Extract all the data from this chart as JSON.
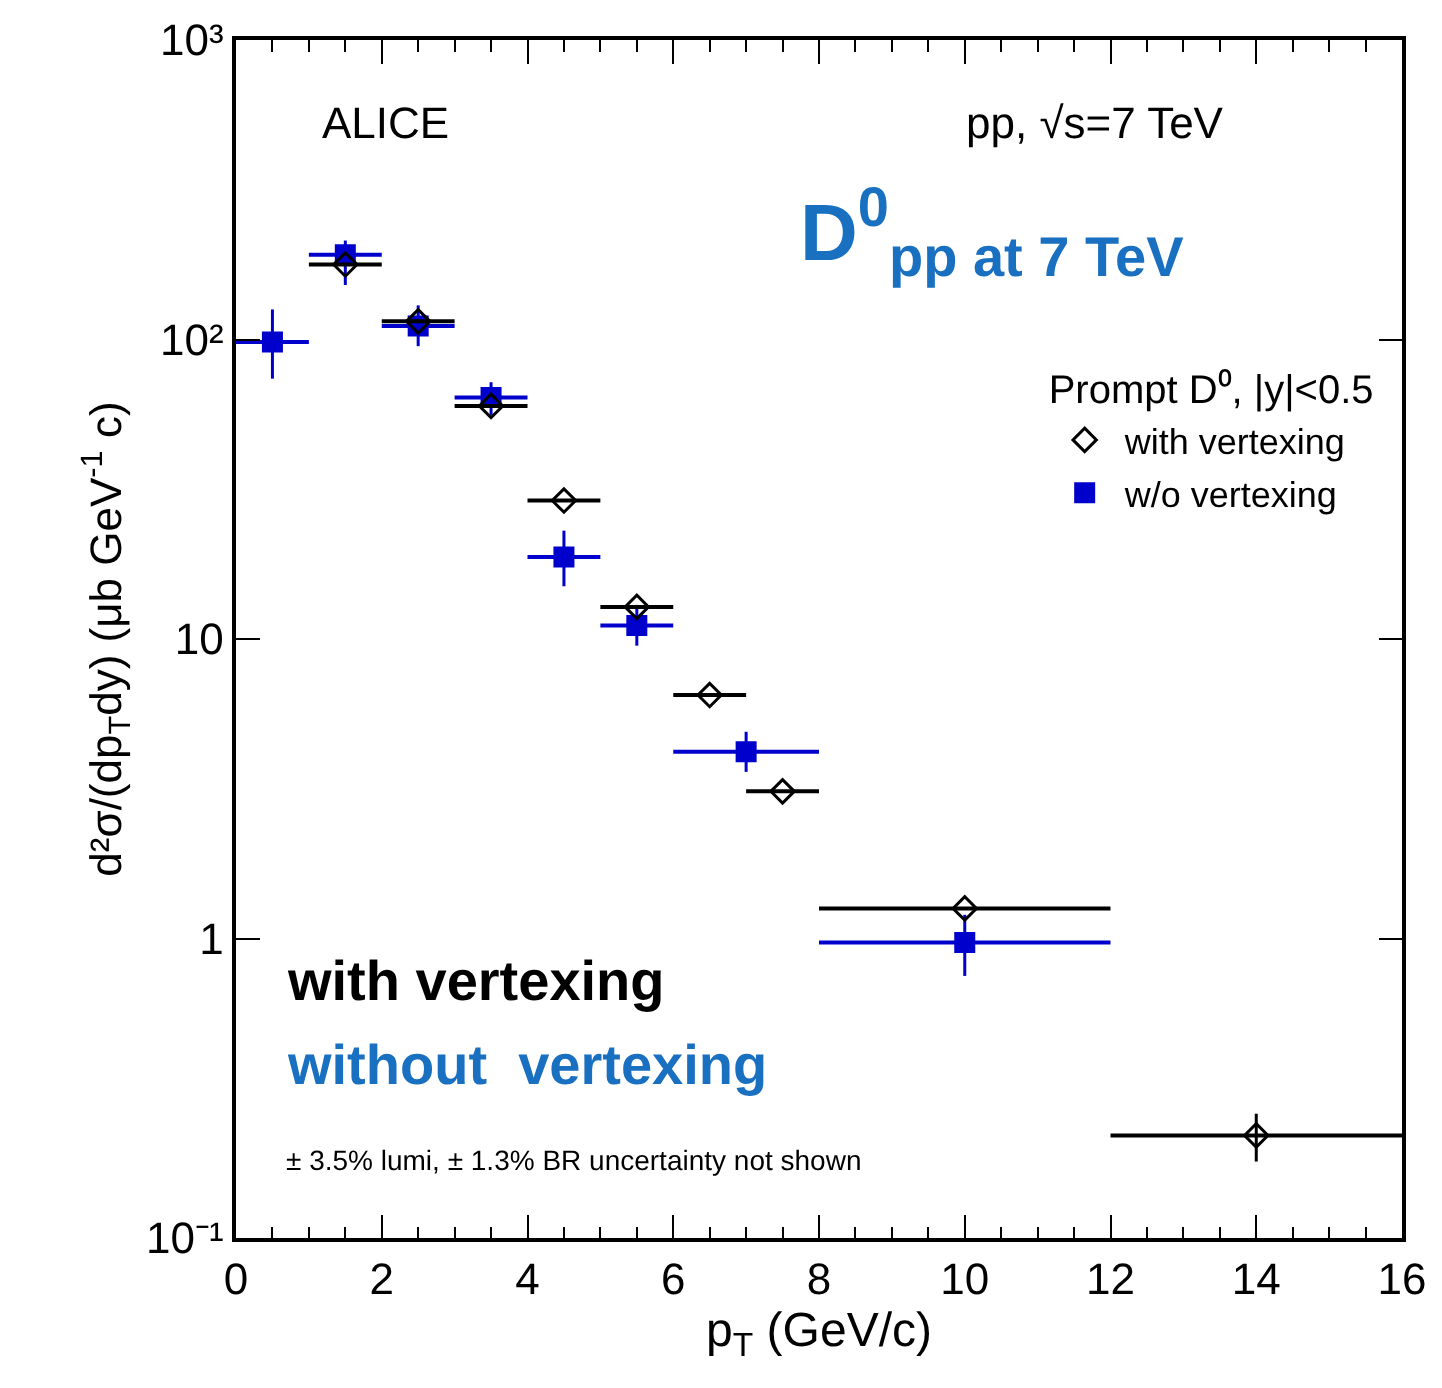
{
  "chart_data": {
    "type": "scatter",
    "xlabel": "p$_{T}$ (GeV/c)",
    "ylabel": "d²σ/(dp$_{T}$dy) (μb GeV$^{-1}$ c)",
    "legend_title": "Prompt D⁰, |y|<0.5",
    "legend": "top right",
    "log": "y",
    "grid": false,
    "xlim": [
      0,
      16
    ],
    "xticks": [
      0,
      2,
      4,
      6,
      8,
      10,
      12,
      14,
      16
    ],
    "ylim": [
      0.1,
      1000
    ],
    "yticks": [
      {
        "value": 0.1,
        "label": "10⁻¹"
      },
      1,
      10,
      {
        "value": 100,
        "label": "10²"
      },
      {
        "value": 1000,
        "label": "10³"
      }
    ],
    "series": [
      {
        "name": "with vertexing",
        "color": "#000000",
        "marker": "diamond",
        "x": [
          1.5,
          2.5,
          3.5,
          4.5,
          5.5,
          6.5,
          7.5,
          10,
          14
        ],
        "values": [
          178,
          115,
          60,
          29,
          12.8,
          6.5,
          3.1,
          1.26,
          0.22
        ],
        "xerrors": [
          0.5,
          0.5,
          0.5,
          0.5,
          0.5,
          0.5,
          0.5,
          2,
          2
        ],
        "errors": [
          null,
          null,
          null,
          null,
          null,
          null,
          null,
          null,
          [
            0.18,
            0.26
          ]
        ]
      },
      {
        "name": "w/o vertexing",
        "color": "#0000cc",
        "marker": "square",
        "x": [
          0.5,
          1.5,
          2.5,
          3.5,
          4.5,
          5.5,
          7,
          10
        ],
        "values": [
          98,
          192,
          111,
          64,
          18.8,
          11.1,
          4.2,
          0.97
        ],
        "xerrors": [
          0.5,
          0.5,
          0.5,
          0.5,
          0.5,
          0.5,
          1,
          2
        ],
        "errors": [
          [
            74,
            126
          ],
          [
            152,
            214
          ],
          [
            95,
            130
          ],
          [
            56,
            72
          ],
          [
            15,
            23
          ],
          [
            9.5,
            13
          ],
          [
            3.6,
            4.9
          ],
          [
            0.75,
            1.2
          ]
        ]
      }
    ],
    "annotations": [
      "ALICE",
      "pp, √s=7 TeV",
      "D$^{0}$$_{pp at 7 TeV}$",
      "with vertexing",
      "without  vertexing",
      "± 3.5% lumi, ± 1.3% BR uncertainty not shown"
    ]
  }
}
